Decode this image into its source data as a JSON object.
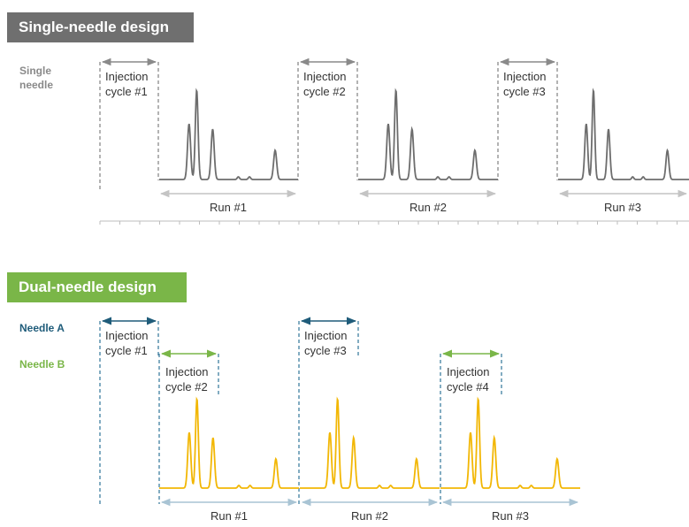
{
  "single": {
    "banner": "Single-needle design",
    "row_label": "Single\nneedle",
    "injection_cycles": [
      {
        "line1": "Injection",
        "line2": "cycle #1"
      },
      {
        "line1": "Injection",
        "line2": "cycle #2"
      },
      {
        "line1": "Injection",
        "line2": "cycle #3"
      }
    ],
    "runs": [
      "Run #1",
      "Run #2",
      "Run #3"
    ]
  },
  "dual": {
    "banner": "Dual-needle design",
    "needle_a": "Needle A",
    "needle_b": "Needle B",
    "injection_cycles_a": [
      {
        "line1": "Injection",
        "line2": "cycle #1"
      },
      {
        "line1": "Injection",
        "line2": "cycle #3"
      }
    ],
    "injection_cycles_b": [
      {
        "line1": "Injection",
        "line2": "cycle #2"
      },
      {
        "line1": "Injection",
        "line2": "cycle #4"
      }
    ],
    "runs": [
      "Run #1",
      "Run #2",
      "Run #3"
    ]
  },
  "colors": {
    "single_banner": "#6f6f6f",
    "dual_banner": "#7ab648",
    "single_trace": "#6d6d6d",
    "dual_trace": "#f2b705",
    "needle_a": "#1f5c7a",
    "needle_b": "#7ab648",
    "single_label": "#8a8a8a",
    "dashed_gray": "#8a8a8a",
    "dashed_blue": "#3f7fa0",
    "run_arrow_single": "#c4c4c4",
    "run_arrow_dual": "#a9c4d4",
    "text": "#333333"
  }
}
